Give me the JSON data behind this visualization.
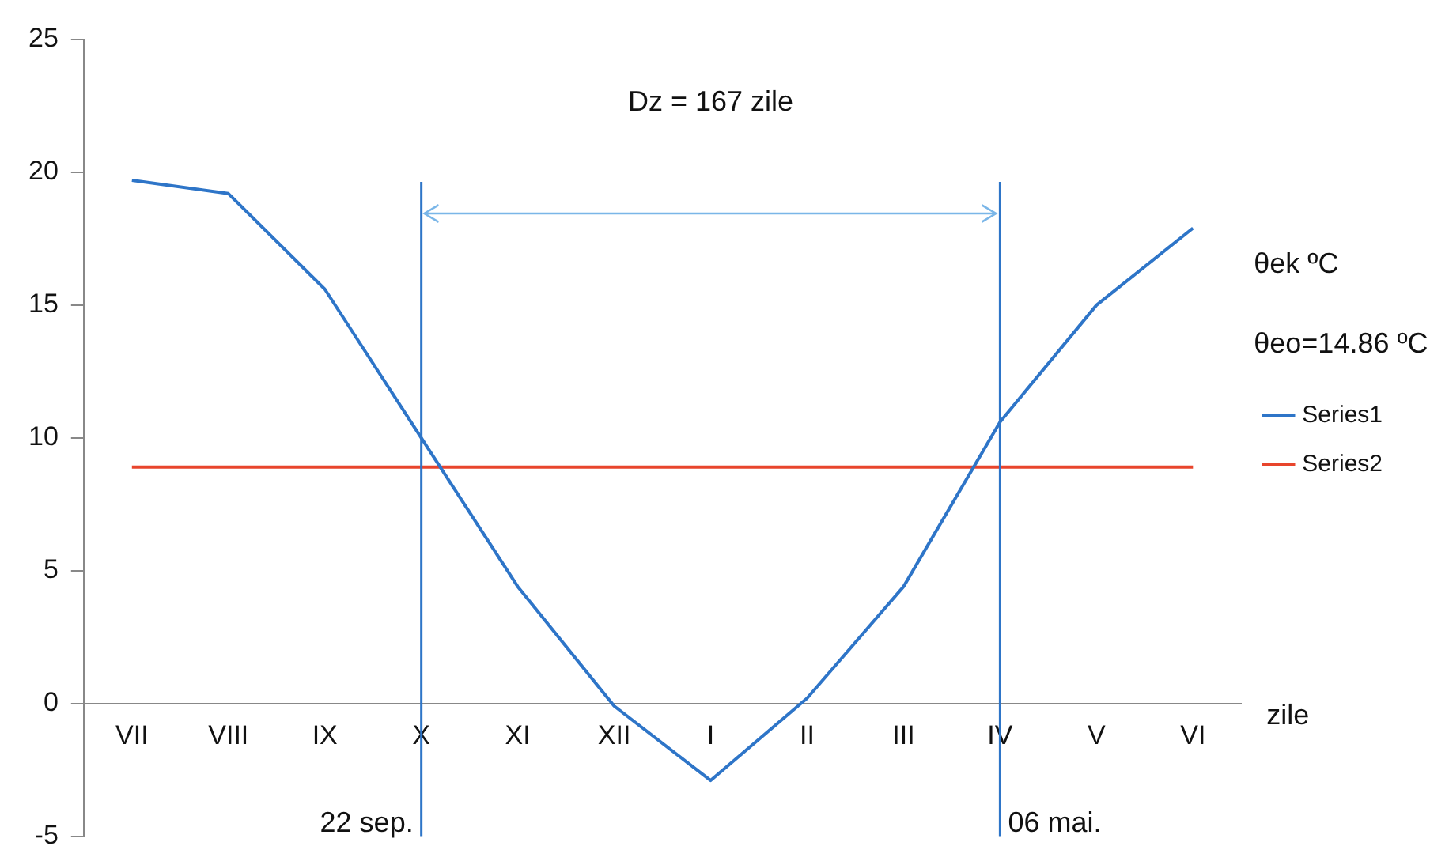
{
  "chart_data": {
    "type": "line",
    "xlabel": "zile",
    "categories": [
      "VII",
      "VIII",
      "IX",
      "X",
      "XI",
      "XII",
      "I",
      "II",
      "III",
      "IV",
      "V",
      "VI"
    ],
    "series": [
      {
        "name": "Series1",
        "color": "#2e75c8",
        "values": [
          19.7,
          19.2,
          15.6,
          10.0,
          4.4,
          -0.1,
          -2.9,
          0.2,
          4.4,
          10.6,
          15.0,
          17.9
        ]
      },
      {
        "name": "Series2",
        "color": "#e8452c",
        "values": [
          8.9,
          8.9,
          8.9,
          8.9,
          8.9,
          8.9,
          8.9,
          8.9,
          8.9,
          8.9,
          8.9,
          8.9
        ]
      }
    ],
    "ylim": [
      -5,
      25
    ],
    "yticks": [
      -5,
      0,
      5,
      10,
      15,
      20,
      25
    ],
    "grid": false,
    "legend": "right",
    "marker": "none",
    "line_style": "solid",
    "ref_lines": [
      {
        "axis": "x",
        "value": "X",
        "label": "22 sep.",
        "color": "#2e75c8"
      },
      {
        "axis": "x",
        "value": "IV",
        "label": "06 mai.",
        "color": "#2e75c8"
      }
    ],
    "annotations": [
      "Dz = 167 zile",
      "θek ºC",
      "θeo=14.86 ºC"
    ]
  }
}
